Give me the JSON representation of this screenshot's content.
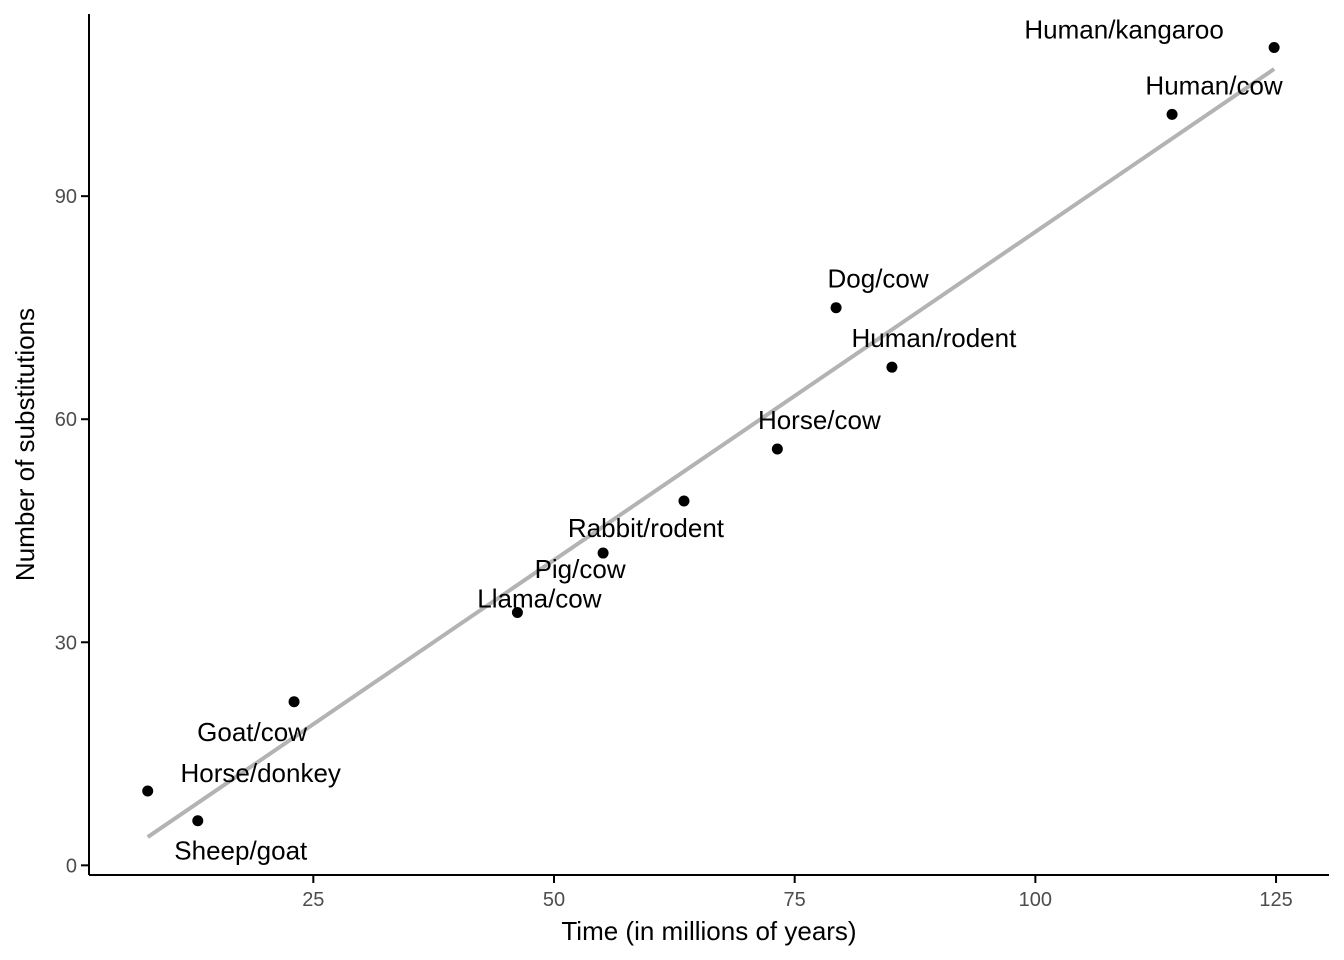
{
  "chart_data": {
    "type": "scatter",
    "title": "",
    "xlabel": "Time (in millions of years)",
    "ylabel": "Number of substitutions",
    "xlim": [
      1.7,
      130.5
    ],
    "ylim": [
      -1.3,
      114.5
    ],
    "x_ticks": [
      25,
      50,
      75,
      100,
      125
    ],
    "x_tick_labels": [
      "25",
      "50",
      "75",
      "100",
      "125"
    ],
    "y_ticks": [
      0,
      30,
      60,
      90
    ],
    "y_tick_labels": [
      "0",
      "30",
      "60",
      "90"
    ],
    "grid": false,
    "legend": "none",
    "points": [
      {
        "label": "Sheep/goat",
        "x": 13,
        "y": 6
      },
      {
        "label": "Horse/donkey",
        "x": 7.8,
        "y": 10
      },
      {
        "label": "Goat/cow",
        "x": 23,
        "y": 22
      },
      {
        "label": "Llama/cow",
        "x": 46.2,
        "y": 34
      },
      {
        "label": "Pig/cow",
        "x": 55.1,
        "y": 42
      },
      {
        "label": "Rabbit/rodent",
        "x": 63.5,
        "y": 49
      },
      {
        "label": "Horse/cow",
        "x": 73.2,
        "y": 56
      },
      {
        "label": "Human/rodent",
        "x": 85.1,
        "y": 67
      },
      {
        "label": "Dog/cow",
        "x": 79.3,
        "y": 75
      },
      {
        "label": "Human/cow",
        "x": 114.2,
        "y": 101
      },
      {
        "label": "Human/kangaroo",
        "x": 124.8,
        "y": 110
      }
    ],
    "trend_line": {
      "type": "linear-fit",
      "start": {
        "x": 7.8,
        "y": 3.8
      },
      "end": {
        "x": 124.8,
        "y": 107.1
      }
    },
    "colors": {
      "points": "#000000",
      "trend_line": "#b3b3b3",
      "axis": "#000000",
      "tick_text": "#4d4d4d"
    }
  }
}
